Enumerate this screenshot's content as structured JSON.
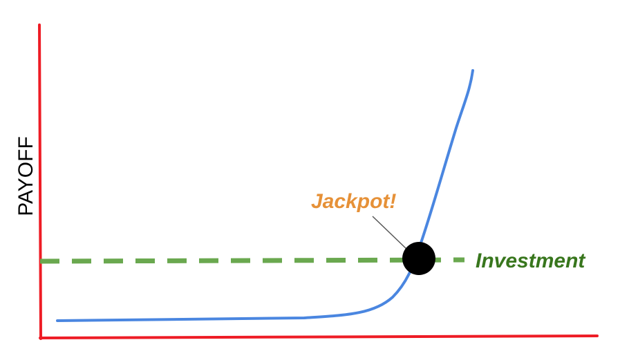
{
  "labels": {
    "y_axis": "PAYOFF",
    "jackpot": "Jackpot!",
    "investment": "Investment"
  },
  "colors": {
    "axes": "#ee1c25",
    "payoff_curve": "#4a86e0",
    "investment_line": "#6aa84f",
    "jackpot_text": "#e69138",
    "investment_text": "#38761d",
    "jackpot_point": "#000000",
    "leader_line": "#555555"
  }
}
